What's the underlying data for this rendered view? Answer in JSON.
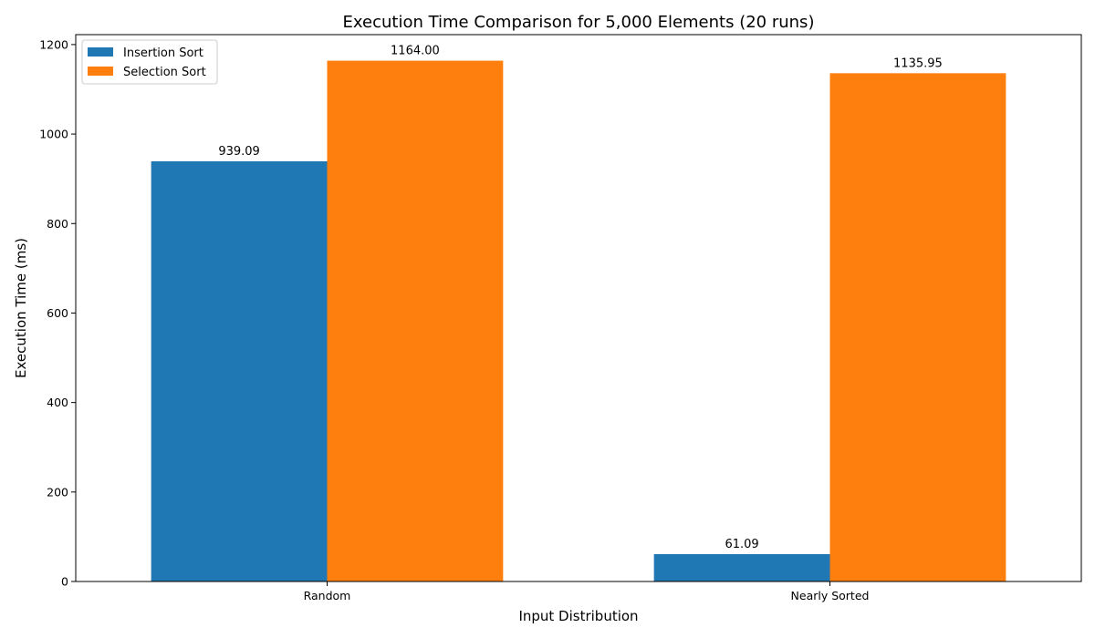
{
  "chart_data": {
    "type": "bar",
    "title": "Execution Time Comparison for 5,000 Elements (20 runs)",
    "xlabel": "Input Distribution",
    "ylabel": "Execution Time (ms)",
    "categories": [
      "Random",
      "Nearly Sorted"
    ],
    "series": [
      {
        "name": "Insertion Sort",
        "color": "#1f77b4",
        "values": [
          939.09,
          61.09
        ],
        "labels": [
          "939.09",
          "61.09"
        ]
      },
      {
        "name": "Selection Sort",
        "color": "#ff7f0e",
        "values": [
          1164.0,
          1135.95
        ],
        "labels": [
          "1164.00",
          "1135.95"
        ]
      }
    ],
    "ylim": [
      0,
      1222.2
    ],
    "yticks": [
      0,
      200,
      400,
      600,
      800,
      1000,
      1200
    ],
    "ytick_labels": [
      "0",
      "200",
      "400",
      "600",
      "800",
      "1000",
      "1200"
    ],
    "grid": false,
    "legend_position": "top-left"
  }
}
